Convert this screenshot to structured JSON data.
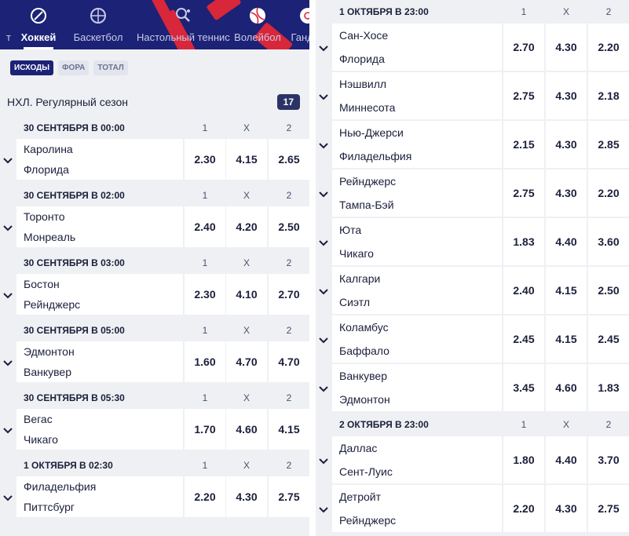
{
  "nav": {
    "items": [
      {
        "label": "т",
        "icon": "partial-icon"
      },
      {
        "label": "Хоккей",
        "icon": "hockey-icon",
        "active": true
      },
      {
        "label": "Баскетбол",
        "icon": "basketball-icon"
      },
      {
        "label": "Настольный теннис",
        "icon": "table-tennis-icon"
      },
      {
        "label": "Волейбол",
        "icon": "volleyball-icon"
      },
      {
        "label": "Гандбо",
        "icon": "handball-icon"
      }
    ]
  },
  "filters": [
    "Исходы",
    "Фора",
    "Тотал"
  ],
  "league": {
    "name": "НХЛ. Регулярный сезон",
    "count": "17"
  },
  "columns": [
    "1",
    "X",
    "2"
  ],
  "left_groups": [
    {
      "date": "30 СЕНТЯБРЯ В 00:00",
      "matches": [
        {
          "home": "Каролина",
          "away": "Флорида",
          "odds": [
            "2.30",
            "4.15",
            "2.65"
          ]
        }
      ]
    },
    {
      "date": "30 СЕНТЯБРЯ В 02:00",
      "matches": [
        {
          "home": "Торонто",
          "away": "Монреаль",
          "odds": [
            "2.40",
            "4.20",
            "2.50"
          ]
        }
      ]
    },
    {
      "date": "30 СЕНТЯБРЯ В 03:00",
      "matches": [
        {
          "home": "Бостон",
          "away": "Рейнджерс",
          "odds": [
            "2.30",
            "4.10",
            "2.70"
          ]
        }
      ]
    },
    {
      "date": "30 СЕНТЯБРЯ В 05:00",
      "matches": [
        {
          "home": "Эдмонтон",
          "away": "Ванкувер",
          "odds": [
            "1.60",
            "4.70",
            "4.70"
          ]
        }
      ]
    },
    {
      "date": "30 СЕНТЯБРЯ В 05:30",
      "matches": [
        {
          "home": "Вегас",
          "away": "Чикаго",
          "odds": [
            "1.70",
            "4.60",
            "4.15"
          ]
        }
      ]
    },
    {
      "date": "1 ОКТЯБРЯ В 02:30",
      "matches": [
        {
          "home": "Филадельфия",
          "away": "Питтсбург",
          "odds": [
            "2.20",
            "4.30",
            "2.75"
          ]
        }
      ]
    }
  ],
  "right_groups": [
    {
      "date": "1 ОКТЯБРЯ В 23:00",
      "matches": [
        {
          "home": "Сан-Хосе",
          "away": "Флорида",
          "odds": [
            "2.70",
            "4.30",
            "2.20"
          ]
        },
        {
          "home": "Нэшвилл",
          "away": "Миннесота",
          "odds": [
            "2.75",
            "4.30",
            "2.18"
          ]
        },
        {
          "home": "Нью-Джерси",
          "away": "Филадельфия",
          "odds": [
            "2.15",
            "4.30",
            "2.85"
          ]
        },
        {
          "home": "Рейнджерс",
          "away": "Тампа-Бэй",
          "odds": [
            "2.75",
            "4.30",
            "2.20"
          ]
        },
        {
          "home": "Юта",
          "away": "Чикаго",
          "odds": [
            "1.83",
            "4.40",
            "3.60"
          ]
        },
        {
          "home": "Калгари",
          "away": "Сиэтл",
          "odds": [
            "2.40",
            "4.15",
            "2.50"
          ]
        },
        {
          "home": "Коламбус",
          "away": "Баффало",
          "odds": [
            "2.45",
            "4.15",
            "2.45"
          ]
        },
        {
          "home": "Ванкувер",
          "away": "Эдмонтон",
          "odds": [
            "3.45",
            "4.60",
            "1.83"
          ]
        }
      ]
    },
    {
      "date": "2 ОКТЯБРЯ В 23:00",
      "matches": [
        {
          "home": "Даллас",
          "away": "Сент-Луис",
          "odds": [
            "1.80",
            "4.40",
            "3.70"
          ]
        },
        {
          "home": "Детройт",
          "away": "Рейнджерс",
          "odds": [
            "2.20",
            "4.30",
            "2.75"
          ]
        }
      ]
    }
  ],
  "colors": {
    "nav_bg": "#1c2275",
    "accent_red": "#d8263a",
    "panel_bg": "#eef0f3",
    "cell_bg": "#ffffff",
    "badge_bg": "#2b3366"
  }
}
